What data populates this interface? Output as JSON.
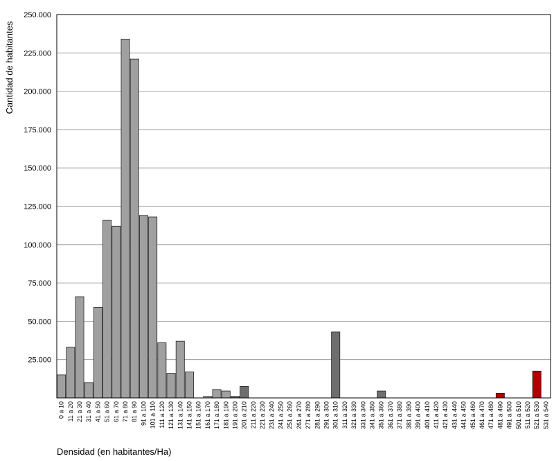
{
  "chart_data": {
    "type": "bar",
    "title": "",
    "xlabel": "Densidad (en habitantes/Ha)",
    "ylabel": "Cantidad de habitantes",
    "ylim": [
      0,
      250000
    ],
    "yticks": [
      25000,
      50000,
      75000,
      100000,
      125000,
      150000,
      175000,
      200000,
      225000,
      250000
    ],
    "ytick_labels": [
      "25.000",
      "50.000",
      "75.000",
      "100.000",
      "125.000",
      "150.000",
      "175.000",
      "200.000",
      "225.000",
      "250.000"
    ],
    "grid": true,
    "colors": {
      "light": "#a0a0a0",
      "dark": "#6e6e6e",
      "red": "#b00000"
    },
    "categories": [
      "0 a 10",
      "11 a 20",
      "21 a 30",
      "31 a 40",
      "41 a 50",
      "51 a 60",
      "61 a 70",
      "71 a 80",
      "81 a 90",
      "91 a 100",
      "101 a 110",
      "111 a 120",
      "121 a 130",
      "131 a 140",
      "141 a 150",
      "151 a 160",
      "161 a 170",
      "171 a 180",
      "181 a 190",
      "191 a 200",
      "201 a 210",
      "211 a 220",
      "221 a 230",
      "231 a 240",
      "241 a 250",
      "251 a 260",
      "261 a 270",
      "271 a 280",
      "281 a 290",
      "291 a 300",
      "301 a 310",
      "311 a 320",
      "321 a 330",
      "331 a 340",
      "341 a 350",
      "351 a 360",
      "361 a 370",
      "371 a 380",
      "381 a 390",
      "391 a 400",
      "401 a 410",
      "411 a 420",
      "421 a 430",
      "431 a 440",
      "441 a 450",
      "451 a 460",
      "461 a 470",
      "471 a 480",
      "481 a 490",
      "491 a 500",
      "501 a 510",
      "511 a 520",
      "521 a 530",
      "531 a 540"
    ],
    "values": [
      15000,
      33000,
      66000,
      10000,
      59000,
      116000,
      112000,
      234000,
      221000,
      119000,
      118000,
      36000,
      16000,
      37000,
      17000,
      0,
      1000,
      5500,
      4500,
      1000,
      7500,
      0,
      0,
      0,
      0,
      0,
      0,
      0,
      0,
      0,
      43000,
      0,
      0,
      0,
      0,
      4500,
      0,
      0,
      0,
      0,
      0,
      0,
      0,
      0,
      0,
      0,
      0,
      0,
      3000,
      0,
      0,
      0,
      17500,
      0
    ],
    "bar_colors": [
      "light",
      "light",
      "light",
      "light",
      "light",
      "light",
      "light",
      "light",
      "light",
      "light",
      "light",
      "light",
      "light",
      "light",
      "light",
      "light",
      "light",
      "light",
      "light",
      "dark",
      "dark",
      "dark",
      "dark",
      "dark",
      "dark",
      "dark",
      "dark",
      "dark",
      "dark",
      "dark",
      "dark",
      "dark",
      "dark",
      "dark",
      "dark",
      "dark",
      "dark",
      "dark",
      "dark",
      "dark",
      "dark",
      "dark",
      "dark",
      "dark",
      "dark",
      "dark",
      "dark",
      "dark",
      "red",
      "red",
      "red",
      "red",
      "red",
      "red"
    ]
  }
}
